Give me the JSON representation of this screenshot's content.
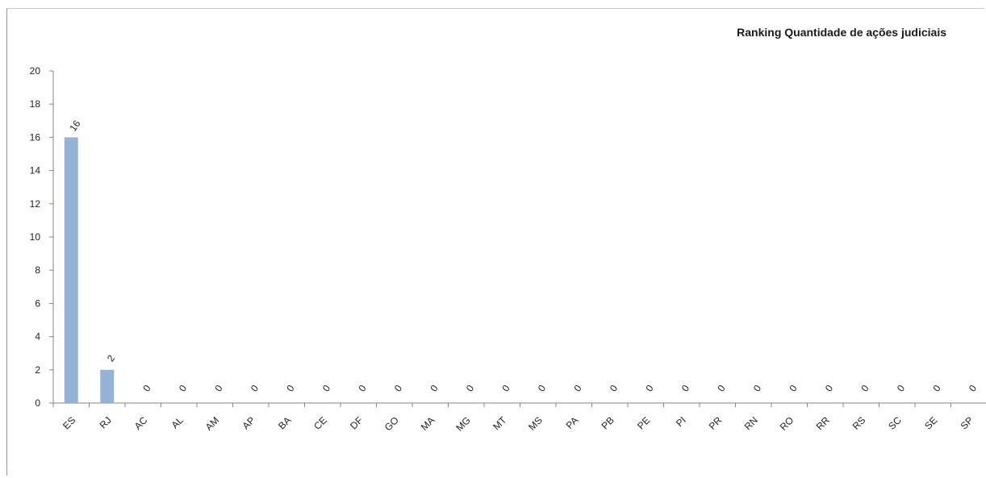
{
  "chart_data": {
    "type": "bar",
    "title": "Ranking Quantidade de  ações judiciais",
    "categories": [
      "ES",
      "RJ",
      "AC",
      "AL",
      "AM",
      "AP",
      "BA",
      "CE",
      "DF",
      "GO",
      "MA",
      "MG",
      "MT",
      "MS",
      "PA",
      "PB",
      "PE",
      "PI",
      "PR",
      "RN",
      "RO",
      "RR",
      "RS",
      "SC",
      "SE",
      "SP"
    ],
    "values": [
      16,
      2,
      0,
      0,
      0,
      0,
      0,
      0,
      0,
      0,
      0,
      0,
      0,
      0,
      0,
      0,
      0,
      0,
      0,
      0,
      0,
      0,
      0,
      0,
      0,
      0
    ],
    "y_ticks": [
      "0",
      "2",
      "4",
      "6",
      "8",
      "10",
      "12",
      "14",
      "16",
      "18",
      "20"
    ],
    "ylim": [
      0,
      20
    ],
    "bar_color": "#95b3d7",
    "axis_color": "#868686",
    "grid": false,
    "legend": "none"
  }
}
